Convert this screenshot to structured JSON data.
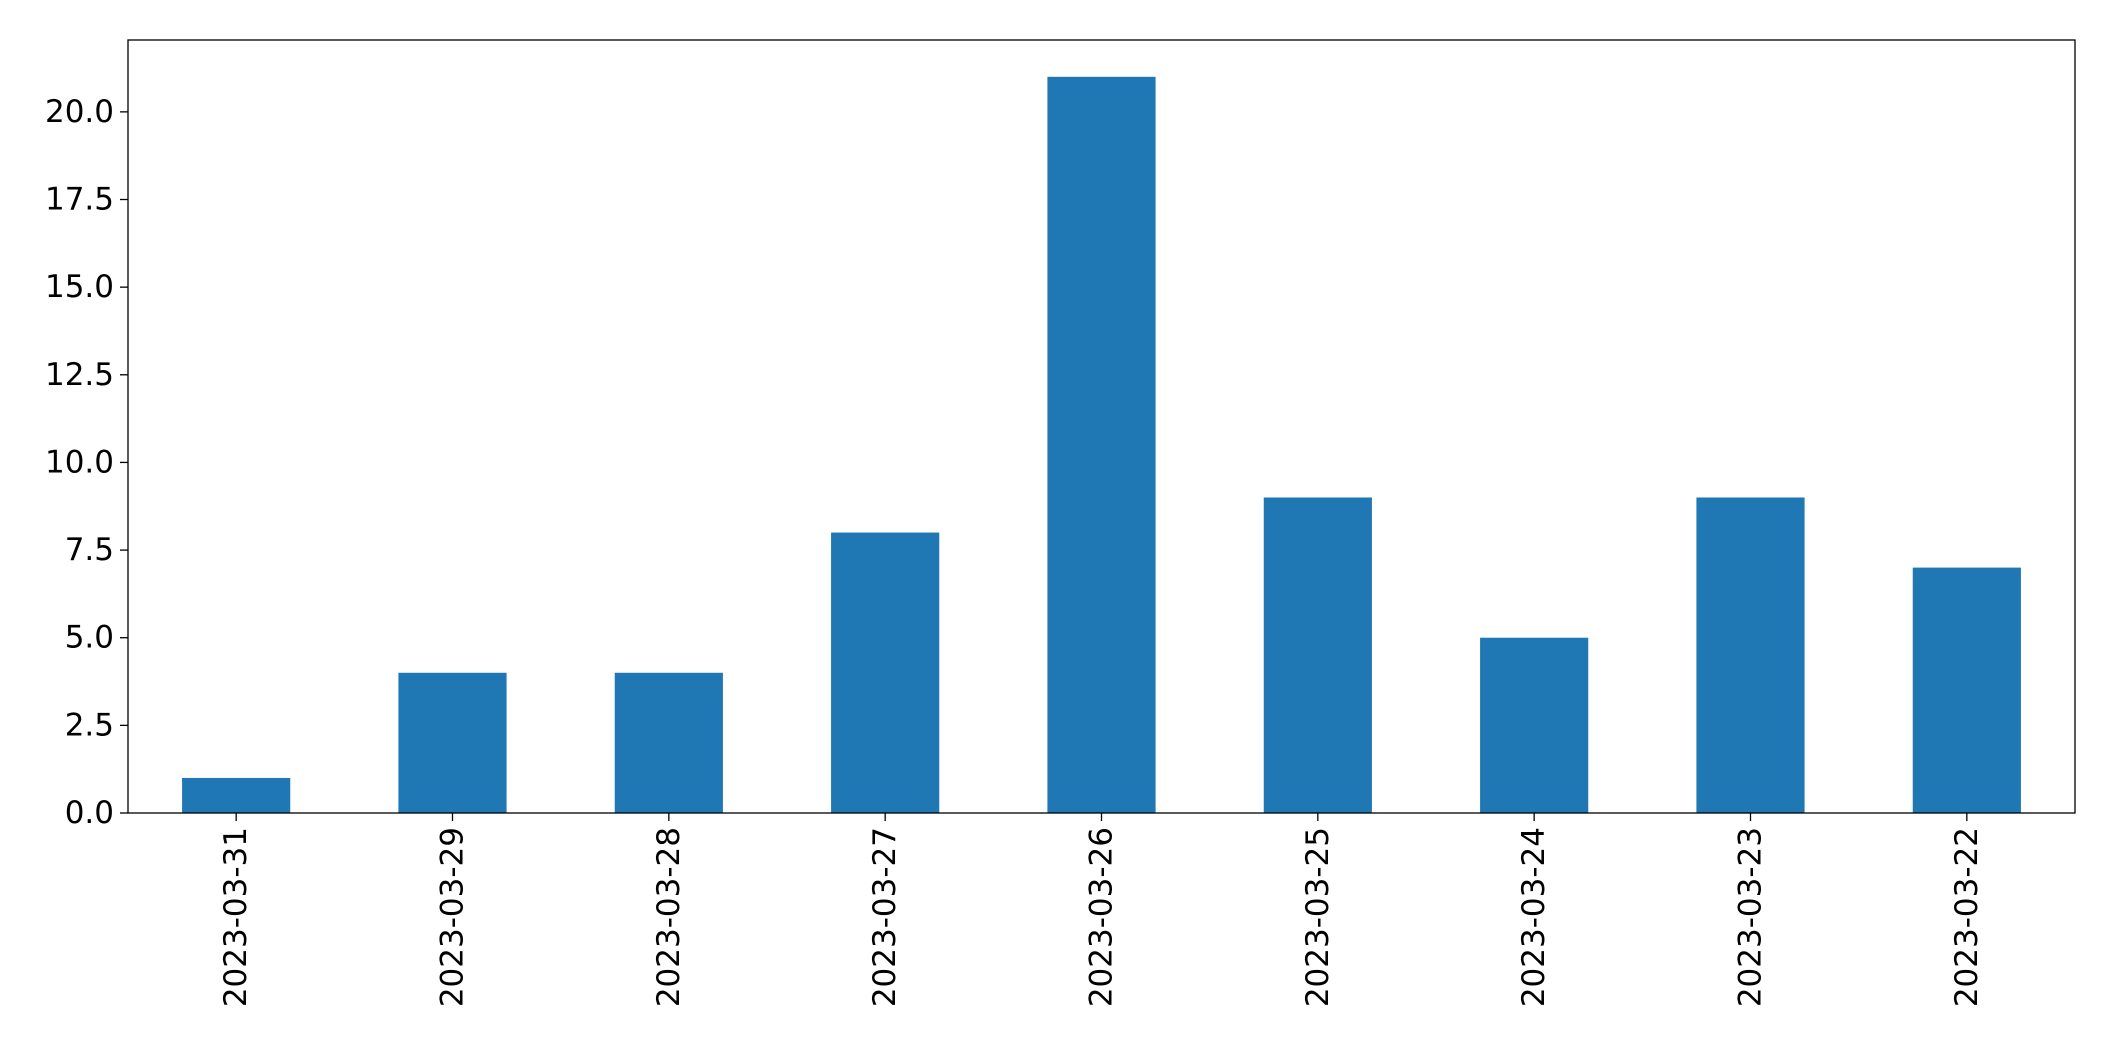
{
  "chart_data": {
    "type": "bar",
    "title": "",
    "xlabel": "",
    "ylabel": "",
    "categories": [
      "2023-03-31",
      "2023-03-29",
      "2023-03-28",
      "2023-03-27",
      "2023-03-26",
      "2023-03-25",
      "2023-03-24",
      "2023-03-23",
      "2023-03-22"
    ],
    "values": [
      1,
      4,
      4,
      8,
      21,
      9,
      5,
      9,
      7
    ],
    "ylim": [
      0,
      22.05
    ],
    "yticks": [
      "0.0",
      "2.5",
      "5.0",
      "7.5",
      "10.0",
      "12.5",
      "15.0",
      "17.5",
      "20.0"
    ],
    "bar_color": "#1f77b4",
    "grid": false,
    "legend": "none"
  }
}
